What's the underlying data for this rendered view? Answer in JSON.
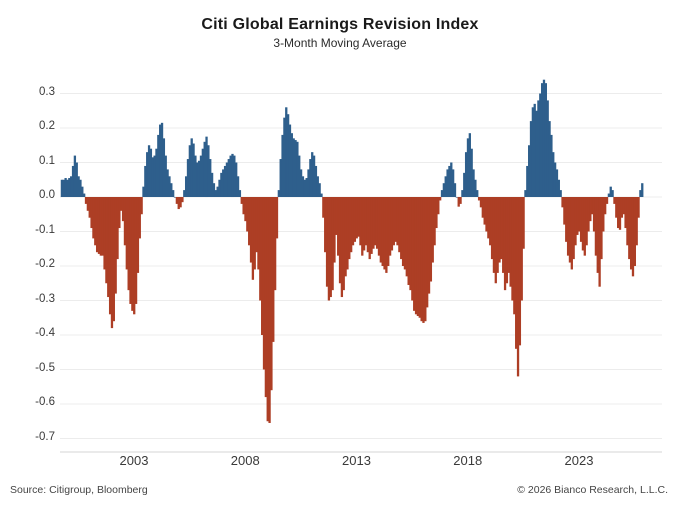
{
  "header": {
    "title": "Citi Global Earnings Revision Index",
    "subtitle": "3-Month Moving Average"
  },
  "footer": {
    "source": "Source: Citigroup, Bloomberg",
    "copyright": "© 2026 Bianco Research, L.L.C."
  },
  "chart_data": {
    "type": "bar",
    "title": "Citi Global Earnings Revision Index",
    "subtitle": "3-Month Moving Average",
    "ylim": [
      -0.7,
      0.35
    ],
    "xlim_decimal_years": [
      1999.6,
      2026.7
    ],
    "grid": "horizontal",
    "legend": "none",
    "yticks": [
      0.3,
      0.2,
      0.1,
      0.0,
      -0.1,
      -0.2,
      -0.3,
      -0.4,
      -0.5,
      -0.6,
      -0.7
    ],
    "ytick_labels": [
      "0.3",
      "0.2",
      "0.1",
      "0.0",
      "-0.1",
      "-0.2",
      "-0.3",
      "-0.4",
      "-0.5",
      "-0.6",
      "-0.7"
    ],
    "xticks": [
      2003,
      2008,
      2013,
      2018,
      2023
    ],
    "xtick_labels": [
      "2003",
      "2008",
      "2013",
      "2018",
      "2023"
    ],
    "colors": {
      "positive": "#2e5f8c",
      "negative": "#ad3e25",
      "grid": "#ececec",
      "spine": "#d6d6d6"
    },
    "series": [
      {
        "name": "3-month moving average of earnings revisions",
        "frequency": "monthly",
        "start": "1999-10",
        "start_decimal_year": 1999.75,
        "values": [
          0.05,
          0.05,
          0.055,
          0.05,
          0.055,
          0.06,
          0.09,
          0.12,
          0.1,
          0.06,
          0.05,
          0.03,
          0.01,
          -0.02,
          -0.04,
          -0.06,
          -0.09,
          -0.12,
          -0.14,
          -0.16,
          -0.165,
          -0.17,
          -0.17,
          -0.21,
          -0.25,
          -0.29,
          -0.34,
          -0.38,
          -0.36,
          -0.28,
          -0.18,
          -0.09,
          -0.04,
          -0.07,
          -0.14,
          -0.21,
          -0.27,
          -0.31,
          -0.33,
          -0.34,
          -0.31,
          -0.22,
          -0.12,
          -0.05,
          0.03,
          0.09,
          0.13,
          0.15,
          0.14,
          0.115,
          0.12,
          0.14,
          0.18,
          0.21,
          0.215,
          0.17,
          0.12,
          0.08,
          0.06,
          0.04,
          0.02,
          0.0,
          -0.02,
          -0.035,
          -0.03,
          -0.015,
          0.02,
          0.06,
          0.11,
          0.15,
          0.17,
          0.155,
          0.12,
          0.1,
          0.105,
          0.12,
          0.14,
          0.16,
          0.175,
          0.15,
          0.11,
          0.07,
          0.04,
          0.02,
          0.03,
          0.05,
          0.07,
          0.08,
          0.09,
          0.1,
          0.11,
          0.12,
          0.125,
          0.12,
          0.1,
          0.06,
          0.02,
          -0.02,
          -0.05,
          -0.07,
          -0.1,
          -0.14,
          -0.19,
          -0.24,
          -0.21,
          -0.16,
          -0.21,
          -0.3,
          -0.4,
          -0.5,
          -0.58,
          -0.65,
          -0.655,
          -0.56,
          -0.42,
          -0.27,
          -0.12,
          0.02,
          0.11,
          0.18,
          0.23,
          0.26,
          0.24,
          0.21,
          0.185,
          0.17,
          0.165,
          0.16,
          0.12,
          0.08,
          0.06,
          0.05,
          0.055,
          0.08,
          0.11,
          0.13,
          0.12,
          0.09,
          0.06,
          0.04,
          0.01,
          -0.06,
          -0.16,
          -0.26,
          -0.3,
          -0.29,
          -0.27,
          -0.19,
          -0.11,
          -0.17,
          -0.25,
          -0.29,
          -0.27,
          -0.23,
          -0.21,
          -0.18,
          -0.16,
          -0.14,
          -0.13,
          -0.12,
          -0.115,
          -0.14,
          -0.17,
          -0.155,
          -0.14,
          -0.16,
          -0.18,
          -0.165,
          -0.15,
          -0.14,
          -0.15,
          -0.17,
          -0.19,
          -0.2,
          -0.21,
          -0.22,
          -0.2,
          -0.17,
          -0.155,
          -0.14,
          -0.13,
          -0.14,
          -0.16,
          -0.18,
          -0.2,
          -0.21,
          -0.23,
          -0.255,
          -0.27,
          -0.3,
          -0.33,
          -0.34,
          -0.345,
          -0.35,
          -0.36,
          -0.365,
          -0.36,
          -0.32,
          -0.28,
          -0.245,
          -0.19,
          -0.14,
          -0.09,
          -0.05,
          -0.01,
          0.02,
          0.04,
          0.06,
          0.08,
          0.09,
          0.1,
          0.08,
          0.04,
          0.0,
          -0.028,
          -0.02,
          0.02,
          0.07,
          0.13,
          0.17,
          0.185,
          0.14,
          0.08,
          0.05,
          0.02,
          -0.01,
          -0.03,
          -0.06,
          -0.08,
          -0.1,
          -0.12,
          -0.14,
          -0.18,
          -0.22,
          -0.25,
          -0.22,
          -0.19,
          -0.18,
          -0.22,
          -0.27,
          -0.25,
          -0.22,
          -0.26,
          -0.3,
          -0.34,
          -0.44,
          -0.52,
          -0.43,
          -0.3,
          -0.15,
          0.02,
          0.09,
          0.15,
          0.22,
          0.26,
          0.27,
          0.25,
          0.28,
          0.3,
          0.33,
          0.34,
          0.33,
          0.28,
          0.22,
          0.18,
          0.13,
          0.1,
          0.08,
          0.05,
          0.02,
          -0.03,
          -0.08,
          -0.13,
          -0.17,
          -0.19,
          -0.21,
          -0.18,
          -0.14,
          -0.11,
          -0.1,
          -0.13,
          -0.155,
          -0.17,
          -0.14,
          -0.1,
          -0.07,
          -0.05,
          -0.1,
          -0.17,
          -0.22,
          -0.26,
          -0.18,
          -0.1,
          -0.05,
          -0.02,
          0.01,
          0.03,
          0.02,
          -0.02,
          -0.06,
          -0.09,
          -0.095,
          -0.06,
          -0.05,
          -0.09,
          -0.14,
          -0.18,
          -0.21,
          -0.23,
          -0.2,
          -0.14,
          -0.06,
          0.02,
          0.04
        ]
      }
    ]
  }
}
